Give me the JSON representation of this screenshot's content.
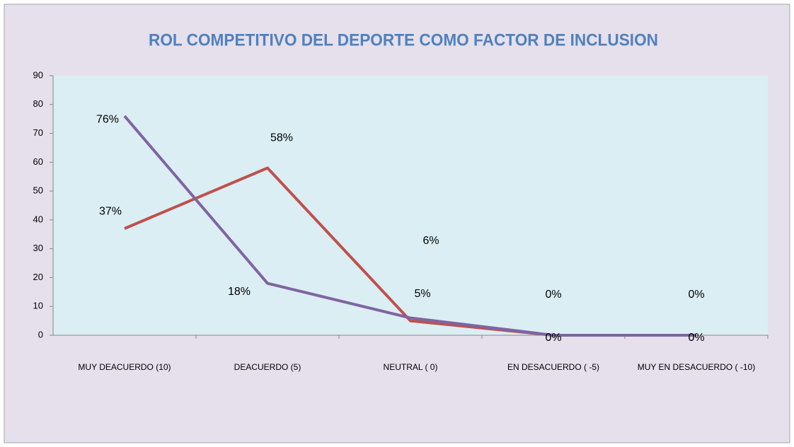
{
  "chart_data": {
    "type": "line",
    "title": "ROL COMPETITIVO  DEL DEPORTE COMO FACTOR DE INCLUSION",
    "categories": [
      "MUY  DEACUERDO (10)",
      "DEACUERDO   (5)",
      "NEUTRAL  ( 0)",
      "EN DESACUERDO  ( -5)",
      "MUY EN DESACUERDO  ( -10)"
    ],
    "series": [
      {
        "color": "#c0504d",
        "values": [
          37,
          58,
          5,
          0,
          0
        ],
        "value_labels": [
          "37%",
          "58%",
          "5%",
          "0%",
          "0%"
        ]
      },
      {
        "color": "#8064a2",
        "values": [
          76,
          18,
          6,
          0,
          0
        ],
        "value_labels": [
          "76%",
          "18%",
          "6%",
          "0%",
          "0%"
        ]
      }
    ],
    "ylim": [
      0,
      90
    ],
    "yticks": [
      0,
      10,
      20,
      30,
      40,
      50,
      60,
      70,
      80,
      90
    ]
  }
}
